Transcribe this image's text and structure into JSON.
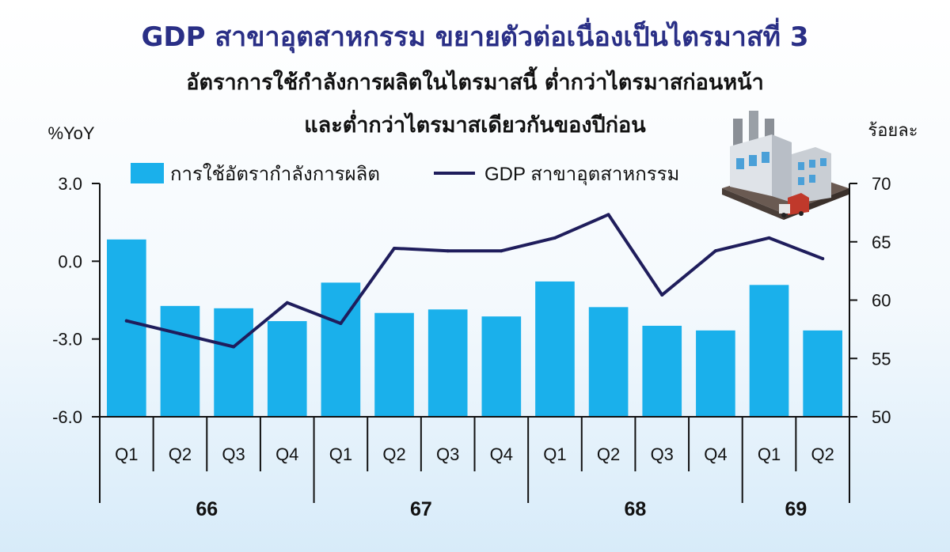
{
  "chart_data": {
    "type": "bar",
    "title": "GDP สาขาอุตสาหกรรม ขยายตัวต่อเนื่องเป็นไตรมาสที่ 3",
    "subtitle_line1": "อัตราการใช้กำลังการผลิตในไตรมาสนี้ ต่ำกว่าไตรมาสก่อนหน้า",
    "subtitle_line2": "และต่ำกว่าไตรมาสเดียวกันของปีก่อน",
    "left_axis_label": "%YoY",
    "right_axis_label": "ร้อยละ",
    "left_ylim": [
      -6.0,
      3.0
    ],
    "left_ticks": [
      "3.0",
      "0.0",
      "-3.0",
      "-6.0"
    ],
    "right_ylim": [
      50,
      70
    ],
    "right_ticks": [
      "70",
      "65",
      "60",
      "55",
      "50"
    ],
    "categories": [
      "Q1",
      "Q2",
      "Q3",
      "Q4",
      "Q1",
      "Q2",
      "Q3",
      "Q4",
      "Q1",
      "Q2",
      "Q3",
      "Q4",
      "Q1",
      "Q2"
    ],
    "years": [
      {
        "label": "66",
        "start": 0,
        "count": 4
      },
      {
        "label": "67",
        "start": 4,
        "count": 4
      },
      {
        "label": "68",
        "start": 8,
        "count": 4
      },
      {
        "label": "69",
        "start": 12,
        "count": 2
      }
    ],
    "series": [
      {
        "name": "การใช้อัตรากำลังการผลิต",
        "kind": "bar",
        "axis": "right",
        "color": "#1ab0eb",
        "values": [
          65.2,
          59.5,
          59.3,
          58.2,
          61.5,
          58.9,
          59.2,
          58.6,
          61.6,
          59.4,
          57.8,
          57.4,
          61.3,
          57.4
        ]
      },
      {
        "name": "GDP สาขาอุตสาหกรรม",
        "kind": "line",
        "axis": "left",
        "color": "#1f1d5c",
        "values": [
          -2.3,
          -2.8,
          -3.3,
          -1.6,
          -2.4,
          0.5,
          0.4,
          0.4,
          0.9,
          1.8,
          -1.3,
          0.4,
          0.9,
          0.1
        ]
      }
    ],
    "legend_position": "top"
  }
}
